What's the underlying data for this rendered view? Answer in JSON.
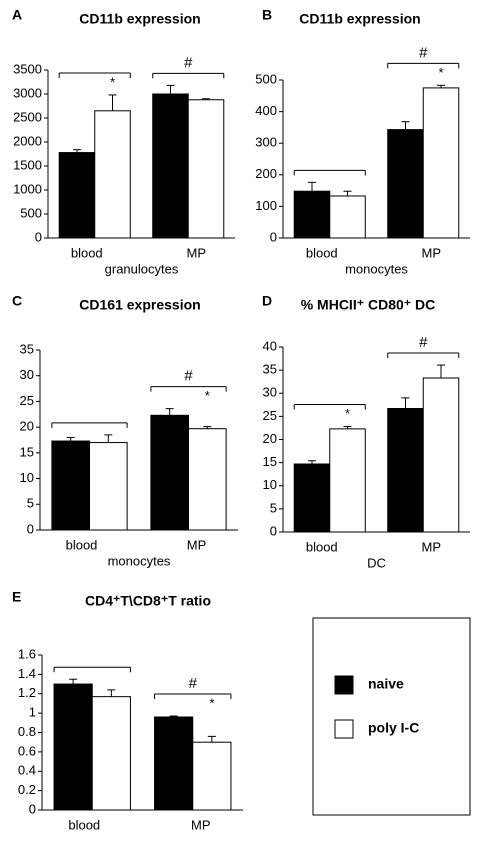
{
  "chart_data": [
    {
      "type": "bar",
      "panel_label": "A",
      "title": "CD11b expression",
      "categories": [
        "blood",
        "MP"
      ],
      "x_label": "granulocytes",
      "series": [
        {
          "color": "#000000",
          "values": [
            1780,
            3000
          ],
          "errors": [
            60,
            180
          ]
        },
        {
          "color": "#ffffff",
          "values": [
            2650,
            2880
          ],
          "errors": [
            330,
            20
          ]
        }
      ],
      "ylim": [
        0,
        3500
      ],
      "yticks": [
        0,
        500,
        1000,
        1500,
        2000,
        2500,
        3000,
        3500
      ],
      "bracket_labels": [
        null,
        "#"
      ],
      "star_labels": [
        "*",
        null
      ]
    },
    {
      "type": "bar",
      "panel_label": "B",
      "title": "CD11b expression",
      "categories": [
        "blood",
        "MP"
      ],
      "x_label": "monocytes",
      "series": [
        {
          "color": "#000000",
          "values": [
            148,
            343
          ],
          "errors": [
            28,
            25
          ]
        },
        {
          "color": "#ffffff",
          "values": [
            133,
            475
          ],
          "errors": [
            15,
            8
          ]
        }
      ],
      "ylim": [
        0,
        500
      ],
      "yticks": [
        0,
        100,
        200,
        300,
        400,
        500
      ],
      "bracket_labels": [
        null,
        "#"
      ],
      "star_labels": [
        null,
        "*"
      ]
    },
    {
      "type": "bar",
      "panel_label": "C",
      "title": "CD161 expression",
      "categories": [
        "blood",
        "MP"
      ],
      "x_label": "monocytes",
      "series": [
        {
          "color": "#000000",
          "values": [
            17.3,
            22.3
          ],
          "errors": [
            0.7,
            1.3
          ]
        },
        {
          "color": "#ffffff",
          "values": [
            17,
            19.7
          ],
          "errors": [
            1.5,
            0.4
          ]
        }
      ],
      "ylim": [
        0,
        35
      ],
      "yticks": [
        0,
        5,
        10,
        15,
        20,
        25,
        30,
        35
      ],
      "bracket_labels": [
        null,
        "#"
      ],
      "star_labels": [
        null,
        "*"
      ]
    },
    {
      "type": "bar",
      "panel_label": "D",
      "title": "% MHCII⁺ CD80⁺ DC",
      "categories": [
        "blood",
        "MP"
      ],
      "x_label": "DC",
      "series": [
        {
          "color": "#000000",
          "values": [
            14.7,
            26.7
          ],
          "errors": [
            0.7,
            2.3
          ]
        },
        {
          "color": "#ffffff",
          "values": [
            22.3,
            33.3
          ],
          "errors": [
            0.5,
            2.8
          ]
        }
      ],
      "ylim": [
        0,
        40
      ],
      "yticks": [
        0,
        5,
        10,
        15,
        20,
        25,
        30,
        35,
        40
      ],
      "bracket_labels": [
        null,
        "#"
      ],
      "star_labels": [
        "*",
        null
      ]
    },
    {
      "type": "bar",
      "panel_label": "E",
      "title": "CD4⁺T\\CD8⁺T ratio",
      "categories": [
        "blood",
        "MP"
      ],
      "series": [
        {
          "color": "#000000",
          "values": [
            1.3,
            0.96
          ],
          "errors": [
            0.05,
            0.01
          ]
        },
        {
          "color": "#ffffff",
          "values": [
            1.17,
            0.7
          ],
          "errors": [
            0.07,
            0.06
          ]
        }
      ],
      "ylim": [
        0,
        1.6
      ],
      "yticks": [
        0,
        0.2,
        0.4,
        0.6,
        0.8,
        1,
        1.2,
        1.4,
        1.6
      ],
      "bracket_labels": [
        null,
        "#"
      ],
      "star_labels": [
        null,
        "*"
      ]
    }
  ],
  "legend": [
    {
      "name": "naive",
      "color": "#000000"
    },
    {
      "name": "poly I-C",
      "color": "#ffffff"
    }
  ]
}
